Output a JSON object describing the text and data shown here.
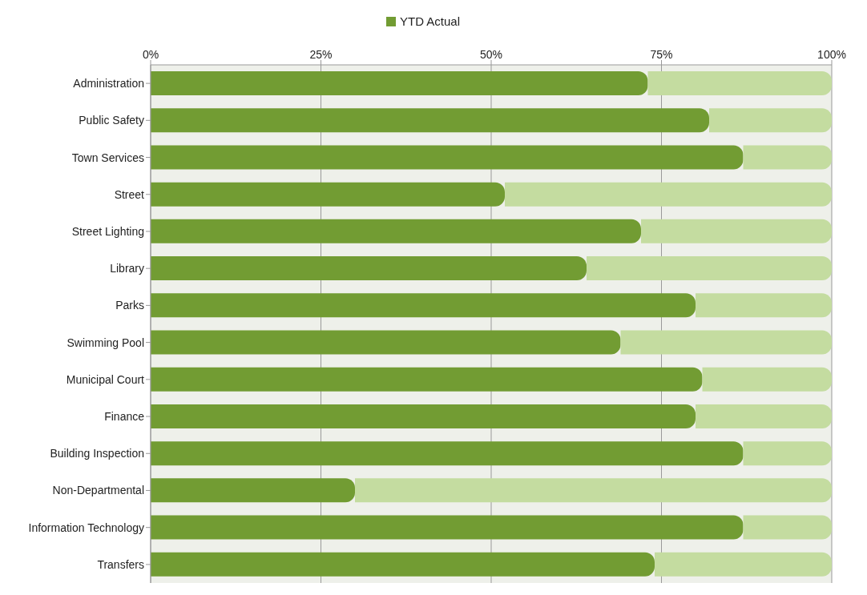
{
  "chart_data": {
    "type": "bar",
    "orientation": "horizontal",
    "stacked": true,
    "categories": [
      "Administration",
      "Public Safety",
      "Town Services",
      "Street",
      "Street Lighting",
      "Library",
      "Parks",
      "Swimming Pool",
      "Municipal Court",
      "Finance",
      "Building Inspection",
      "Non-Departmental",
      "Information Technology",
      "Transfers"
    ],
    "series": [
      {
        "name": "YTD Actual",
        "color": "#729c33",
        "values": [
          73,
          82,
          87,
          52,
          72,
          64,
          80,
          69,
          81,
          80,
          87,
          30,
          87,
          74
        ]
      },
      {
        "color": "#c4dca0",
        "values": [
          27,
          18,
          13,
          48,
          28,
          36,
          20,
          31,
          19,
          20,
          13,
          70,
          13,
          26
        ]
      }
    ],
    "xlim": [
      0,
      100
    ],
    "xticks": [
      {
        "value": 0,
        "label": "0%"
      },
      {
        "value": 25,
        "label": "25%"
      },
      {
        "value": 50,
        "label": "50%"
      },
      {
        "value": 75,
        "label": "75%"
      },
      {
        "value": 100,
        "label": "100%"
      }
    ],
    "grid": "x",
    "legend": "top"
  }
}
